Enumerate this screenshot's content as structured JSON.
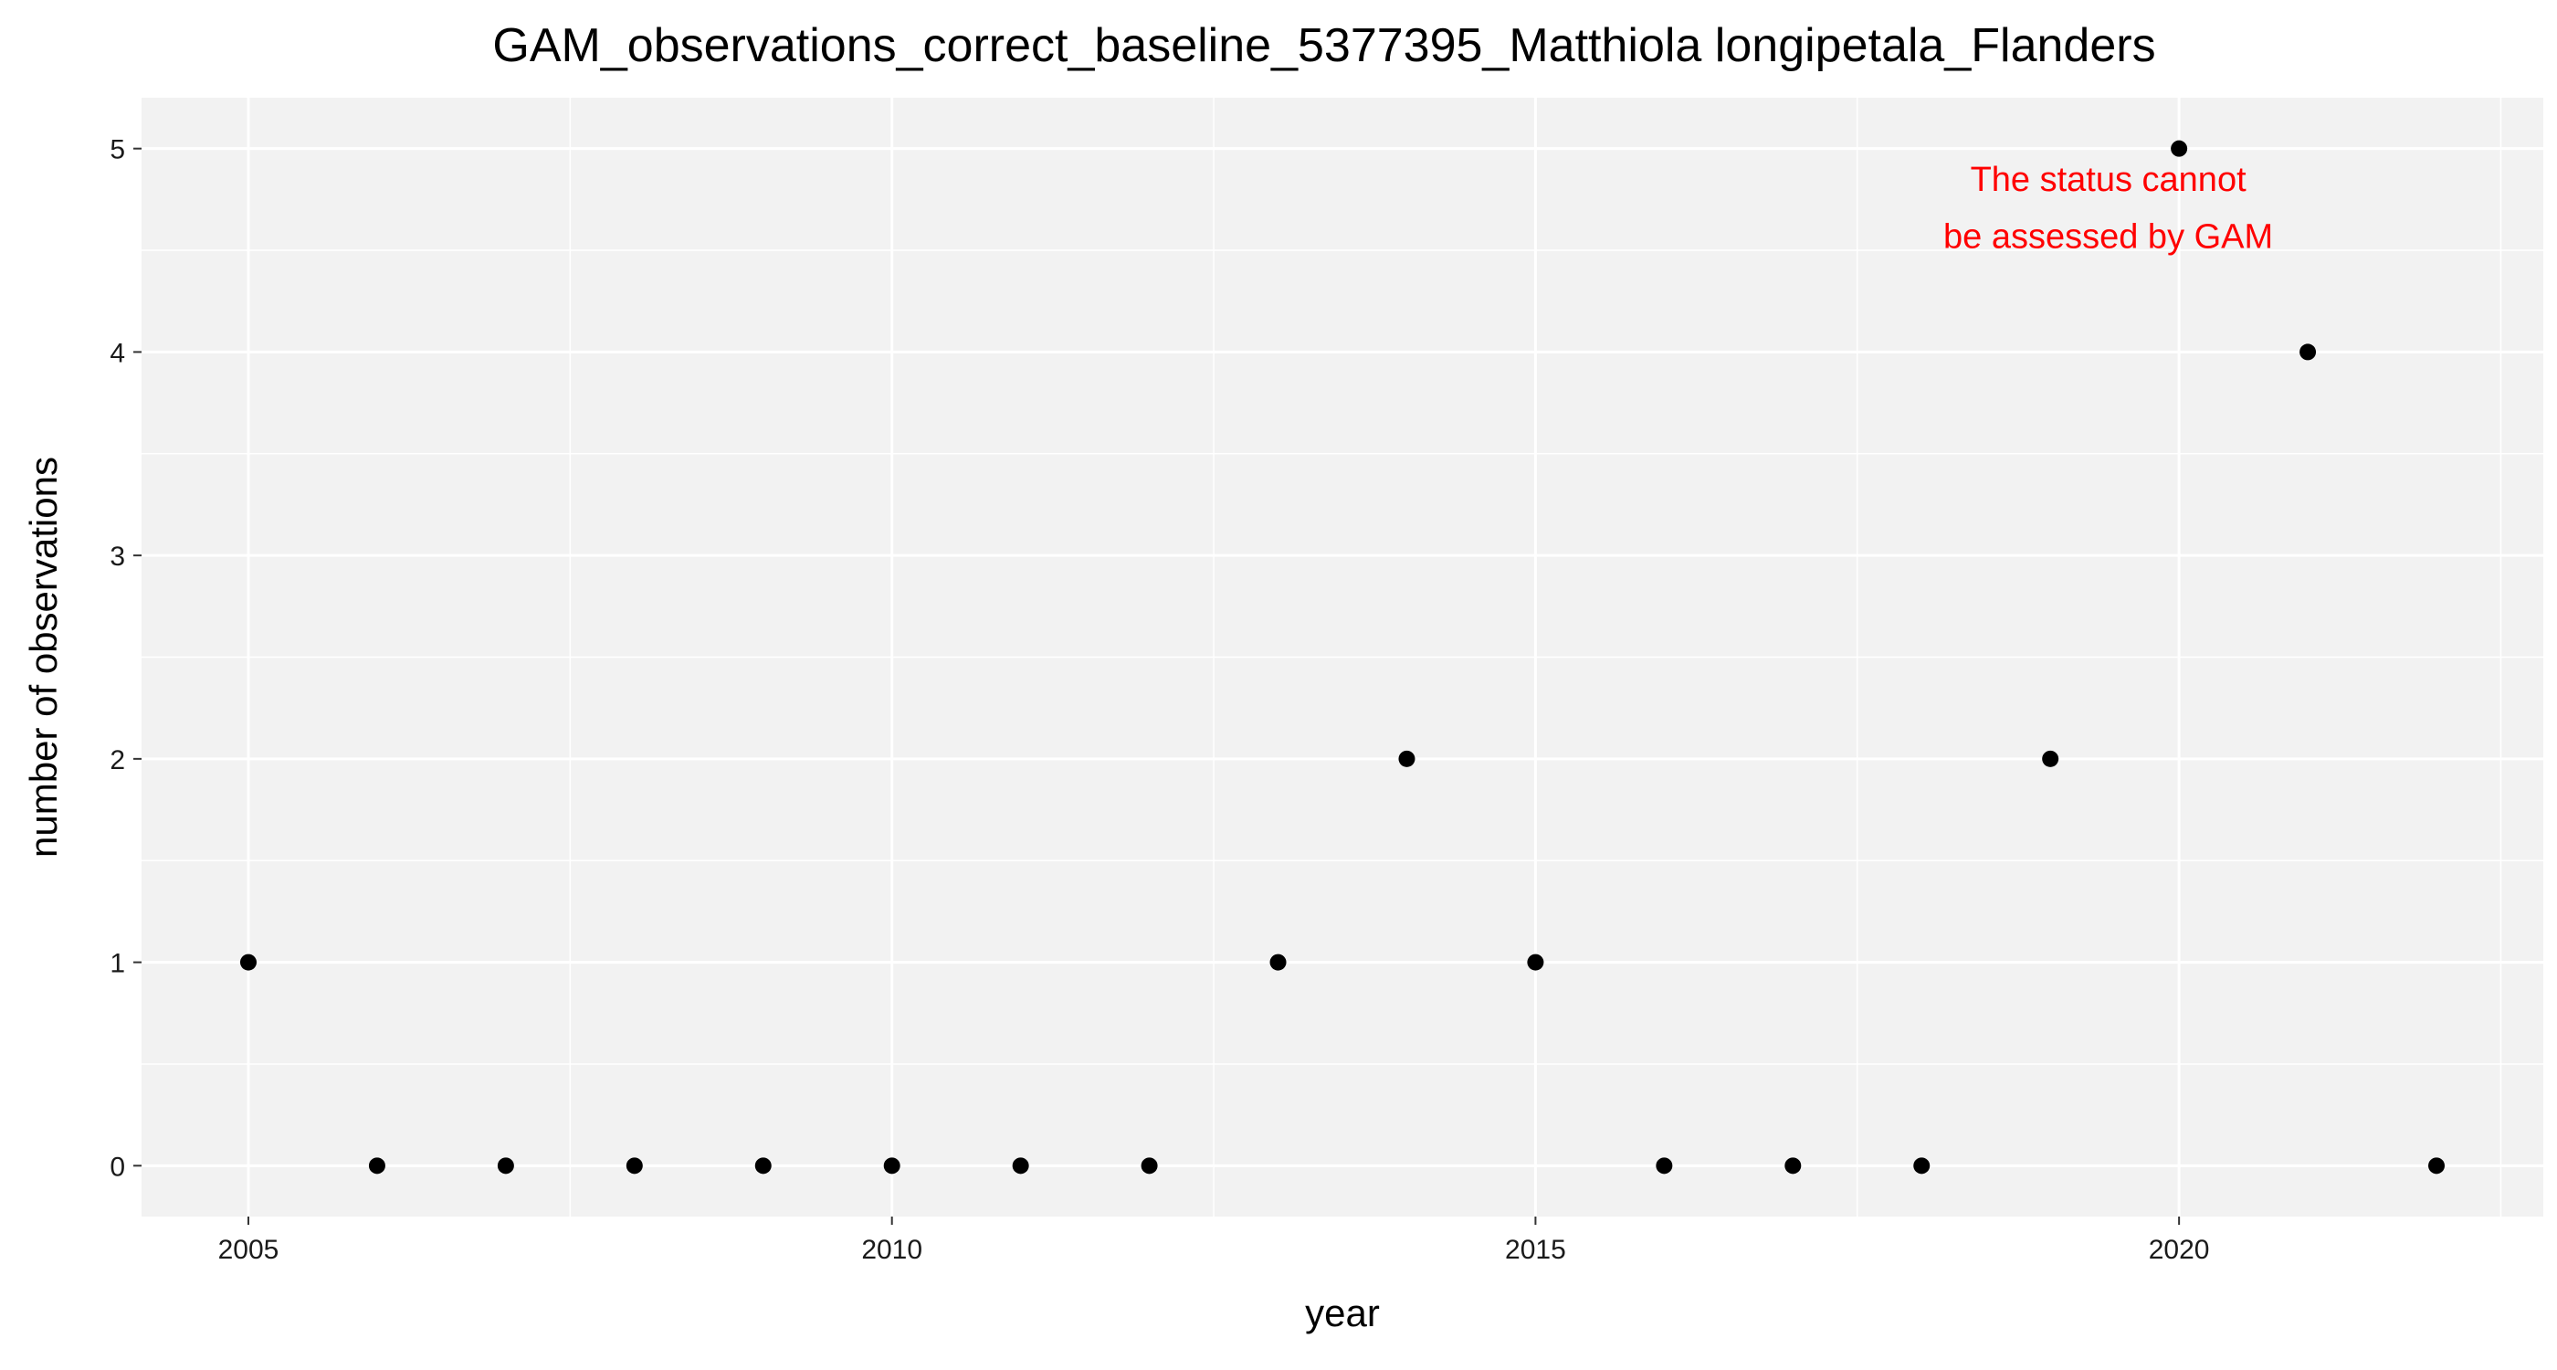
{
  "chart_data": {
    "type": "scatter",
    "title": "GAM_observations_correct_baseline_5377395_Matthiola longipetala_Flanders",
    "xlabel": "year",
    "ylabel": "number of observations",
    "xlim": [
      2004.17,
      2022.83
    ],
    "ylim": [
      -0.25,
      5.25
    ],
    "x_ticks": [
      2005,
      2010,
      2015,
      2020
    ],
    "y_ticks": [
      0,
      1,
      2,
      3,
      4,
      5
    ],
    "grid": true,
    "annotation": {
      "lines": [
        "The status cannot",
        "be assessed by GAM"
      ],
      "color": "#ff0000"
    },
    "points": [
      {
        "x": 2005,
        "y": 1
      },
      {
        "x": 2006,
        "y": 0
      },
      {
        "x": 2007,
        "y": 0
      },
      {
        "x": 2008,
        "y": 0
      },
      {
        "x": 2009,
        "y": 0
      },
      {
        "x": 2010,
        "y": 0
      },
      {
        "x": 2011,
        "y": 0
      },
      {
        "x": 2012,
        "y": 0
      },
      {
        "x": 2013,
        "y": 1
      },
      {
        "x": 2014,
        "y": 2
      },
      {
        "x": 2015,
        "y": 1
      },
      {
        "x": 2016,
        "y": 0
      },
      {
        "x": 2017,
        "y": 0
      },
      {
        "x": 2018,
        "y": 0
      },
      {
        "x": 2019,
        "y": 2
      },
      {
        "x": 2020,
        "y": 5
      },
      {
        "x": 2021,
        "y": 4
      },
      {
        "x": 2022,
        "y": 0
      }
    ]
  }
}
